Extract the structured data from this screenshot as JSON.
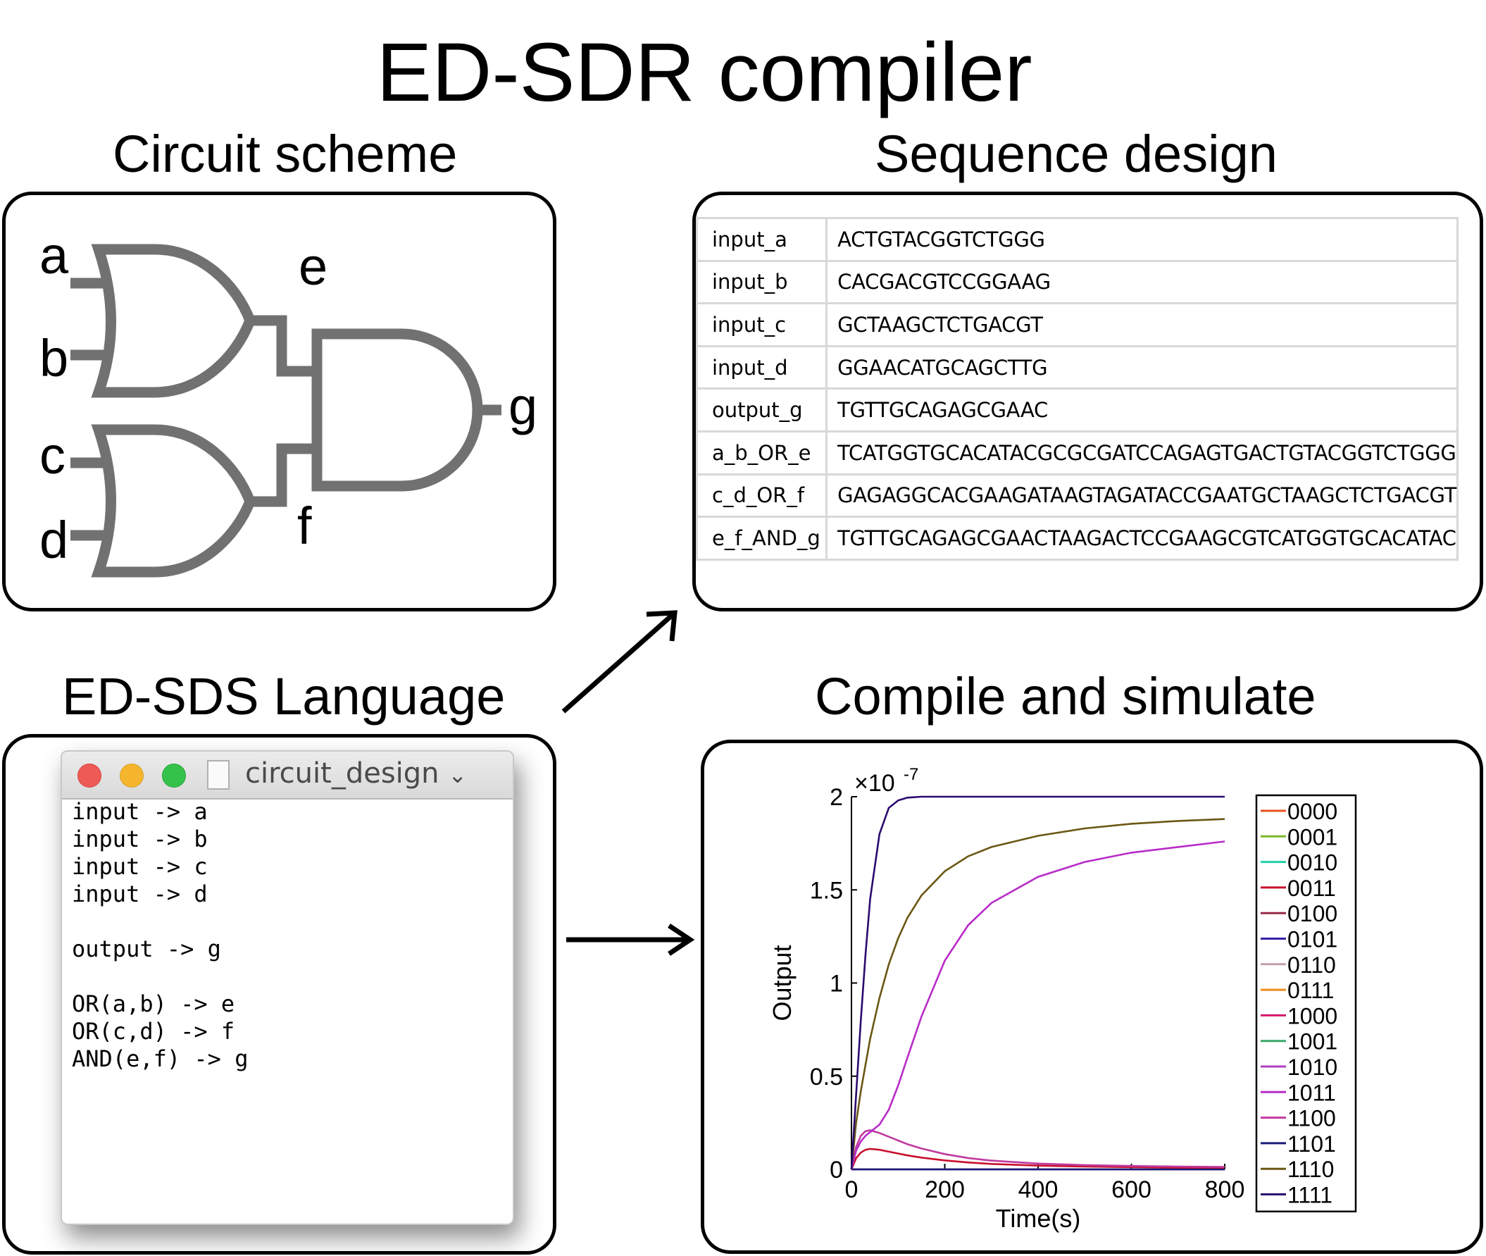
{
  "title": "ED-SDR  compiler",
  "headings": {
    "circuit": "Circuit scheme",
    "sequence": "Sequence design",
    "language": "ED-SDS Language",
    "compile": "Compile and simulate"
  },
  "circuit": {
    "labels": {
      "a": "a",
      "b": "b",
      "c": "c",
      "d": "d",
      "e": "e",
      "f": "f",
      "g": "g"
    },
    "gate_color": "#717171"
  },
  "sequences": [
    {
      "name": "input_a",
      "seq": "ACTGTACGGTCTGGG"
    },
    {
      "name": "input_b",
      "seq": "CACGACGTCCGGAAG"
    },
    {
      "name": "input_c",
      "seq": "GCTAAGCTCTGACGT"
    },
    {
      "name": "input_d",
      "seq": "GGAACATGCAGCTTG"
    },
    {
      "name": "output_g",
      "seq": "TGTTGCAGAGCGAAC"
    },
    {
      "name": "a_b_OR_e",
      "seq": "TCATGGTGCACATACGCGCGATCCAGAGTGACTGTACGGTCTGGG"
    },
    {
      "name": "c_d_OR_f",
      "seq": "GAGAGGCACGAAGATAAGTAGATACCGAATGCTAAGCTCTGACGT"
    },
    {
      "name": "e_f_AND_g",
      "seq": "TGTTGCAGAGCGAACTAAGACTCCGAAGCGTCATGGTGCACATAC"
    }
  ],
  "editor": {
    "filename": "circuit_design",
    "chevron": "⌄",
    "traffic_lights": [
      "#ee5a55",
      "#f5b52c",
      "#34c24a"
    ],
    "code": "input -> a\ninput -> b\ninput -> c\ninput -> d\n\noutput -> g\n\nOR(a,b) -> e\nOR(c,d) -> f\nAND(e,f) -> g"
  },
  "chart_data": {
    "type": "line",
    "xlabel": "Time(s)",
    "ylabel": "Output",
    "y_multiplier": "×10",
    "y_exponent": "-7",
    "xlim": [
      0,
      800
    ],
    "ylim": [
      0,
      2
    ],
    "xticks": [
      0,
      200,
      400,
      600,
      800
    ],
    "xtick_labels": [
      "0",
      "200",
      "400",
      "600",
      "800"
    ],
    "yticks": [
      0,
      0.5,
      1,
      1.5,
      2
    ],
    "ytick_labels": [
      "0",
      "0.5",
      "1",
      "1.5",
      "2"
    ],
    "grid": false,
    "legend_position": "right",
    "x": [
      0,
      10,
      20,
      30,
      40,
      60,
      80,
      100,
      120,
      150,
      200,
      250,
      300,
      400,
      500,
      600,
      700,
      800
    ],
    "series": [
      {
        "name": "0000",
        "color": "#e8501f",
        "values": [
          0,
          0,
          0,
          0,
          0,
          0,
          0,
          0,
          0,
          0,
          0,
          0,
          0,
          0,
          0,
          0,
          0,
          0
        ]
      },
      {
        "name": "0001",
        "color": "#7ab828",
        "values": [
          0,
          0,
          0,
          0,
          0,
          0,
          0,
          0,
          0,
          0,
          0,
          0,
          0,
          0,
          0,
          0,
          0,
          0
        ]
      },
      {
        "name": "0010",
        "color": "#1fd1a8",
        "values": [
          0,
          0,
          0,
          0,
          0,
          0,
          0,
          0,
          0,
          0,
          0,
          0,
          0,
          0,
          0,
          0,
          0,
          0
        ]
      },
      {
        "name": "0011",
        "color": "#c8102e",
        "values": [
          0,
          0.06,
          0.09,
          0.105,
          0.11,
          0.105,
          0.095,
          0.085,
          0.075,
          0.063,
          0.048,
          0.037,
          0.029,
          0.02,
          0.015,
          0.012,
          0.01,
          0.009
        ]
      },
      {
        "name": "0100",
        "color": "#9a2a4a",
        "values": [
          0,
          0,
          0,
          0,
          0,
          0,
          0,
          0,
          0,
          0,
          0,
          0,
          0,
          0,
          0,
          0,
          0,
          0
        ]
      },
      {
        "name": "0101",
        "color": "#3a20a8",
        "values": [
          0,
          0,
          0,
          0,
          0,
          0,
          0,
          0,
          0,
          0,
          0,
          0,
          0,
          0,
          0,
          0,
          0,
          0
        ]
      },
      {
        "name": "0110",
        "color": "#c4a0a8",
        "values": [
          0,
          0,
          0,
          0,
          0,
          0,
          0,
          0,
          0,
          0,
          0,
          0,
          0,
          0,
          0,
          0,
          0,
          0
        ]
      },
      {
        "name": "0111",
        "color": "#f08a1c",
        "values": [
          0,
          0,
          0,
          0,
          0,
          0,
          0,
          0,
          0,
          0,
          0,
          0,
          0,
          0,
          0,
          0,
          0,
          0
        ]
      },
      {
        "name": "1000",
        "color": "#d4186c",
        "values": [
          0,
          0,
          0,
          0,
          0,
          0,
          0,
          0,
          0,
          0,
          0,
          0,
          0,
          0,
          0,
          0,
          0,
          0
        ]
      },
      {
        "name": "1001",
        "color": "#3aa86a",
        "values": [
          0,
          0,
          0,
          0,
          0,
          0,
          0,
          0,
          0,
          0,
          0,
          0,
          0,
          0,
          0,
          0,
          0,
          0
        ]
      },
      {
        "name": "1010",
        "color": "#b040c0",
        "values": [
          0,
          0,
          0,
          0,
          0,
          0,
          0,
          0,
          0,
          0,
          0,
          0,
          0,
          0,
          0,
          0,
          0,
          0
        ]
      },
      {
        "name": "1011",
        "color": "#b82cc8",
        "values": [
          0,
          0.1,
          0.15,
          0.18,
          0.2,
          0.24,
          0.32,
          0.45,
          0.6,
          0.82,
          1.12,
          1.31,
          1.43,
          1.57,
          1.65,
          1.7,
          1.73,
          1.76
        ]
      },
      {
        "name": "1100",
        "color": "#c03a9e",
        "values": [
          0,
          0.12,
          0.18,
          0.205,
          0.21,
          0.195,
          0.175,
          0.155,
          0.135,
          0.112,
          0.082,
          0.061,
          0.047,
          0.031,
          0.023,
          0.018,
          0.015,
          0.013
        ]
      },
      {
        "name": "1101",
        "color": "#1a1a7a",
        "values": [
          0,
          0,
          0,
          0,
          0,
          0,
          0,
          0,
          0,
          0,
          0,
          0,
          0,
          0,
          0,
          0,
          0,
          0
        ]
      },
      {
        "name": "1110",
        "color": "#6b5714",
        "values": [
          0,
          0.25,
          0.42,
          0.56,
          0.7,
          0.92,
          1.1,
          1.24,
          1.35,
          1.47,
          1.6,
          1.68,
          1.73,
          1.79,
          1.83,
          1.855,
          1.87,
          1.88
        ]
      },
      {
        "name": "1111",
        "color": "#2c0a6e",
        "values": [
          0,
          0.4,
          0.8,
          1.15,
          1.45,
          1.8,
          1.94,
          1.98,
          1.995,
          2,
          2,
          2,
          2,
          2,
          2,
          2,
          2,
          2
        ]
      }
    ]
  }
}
